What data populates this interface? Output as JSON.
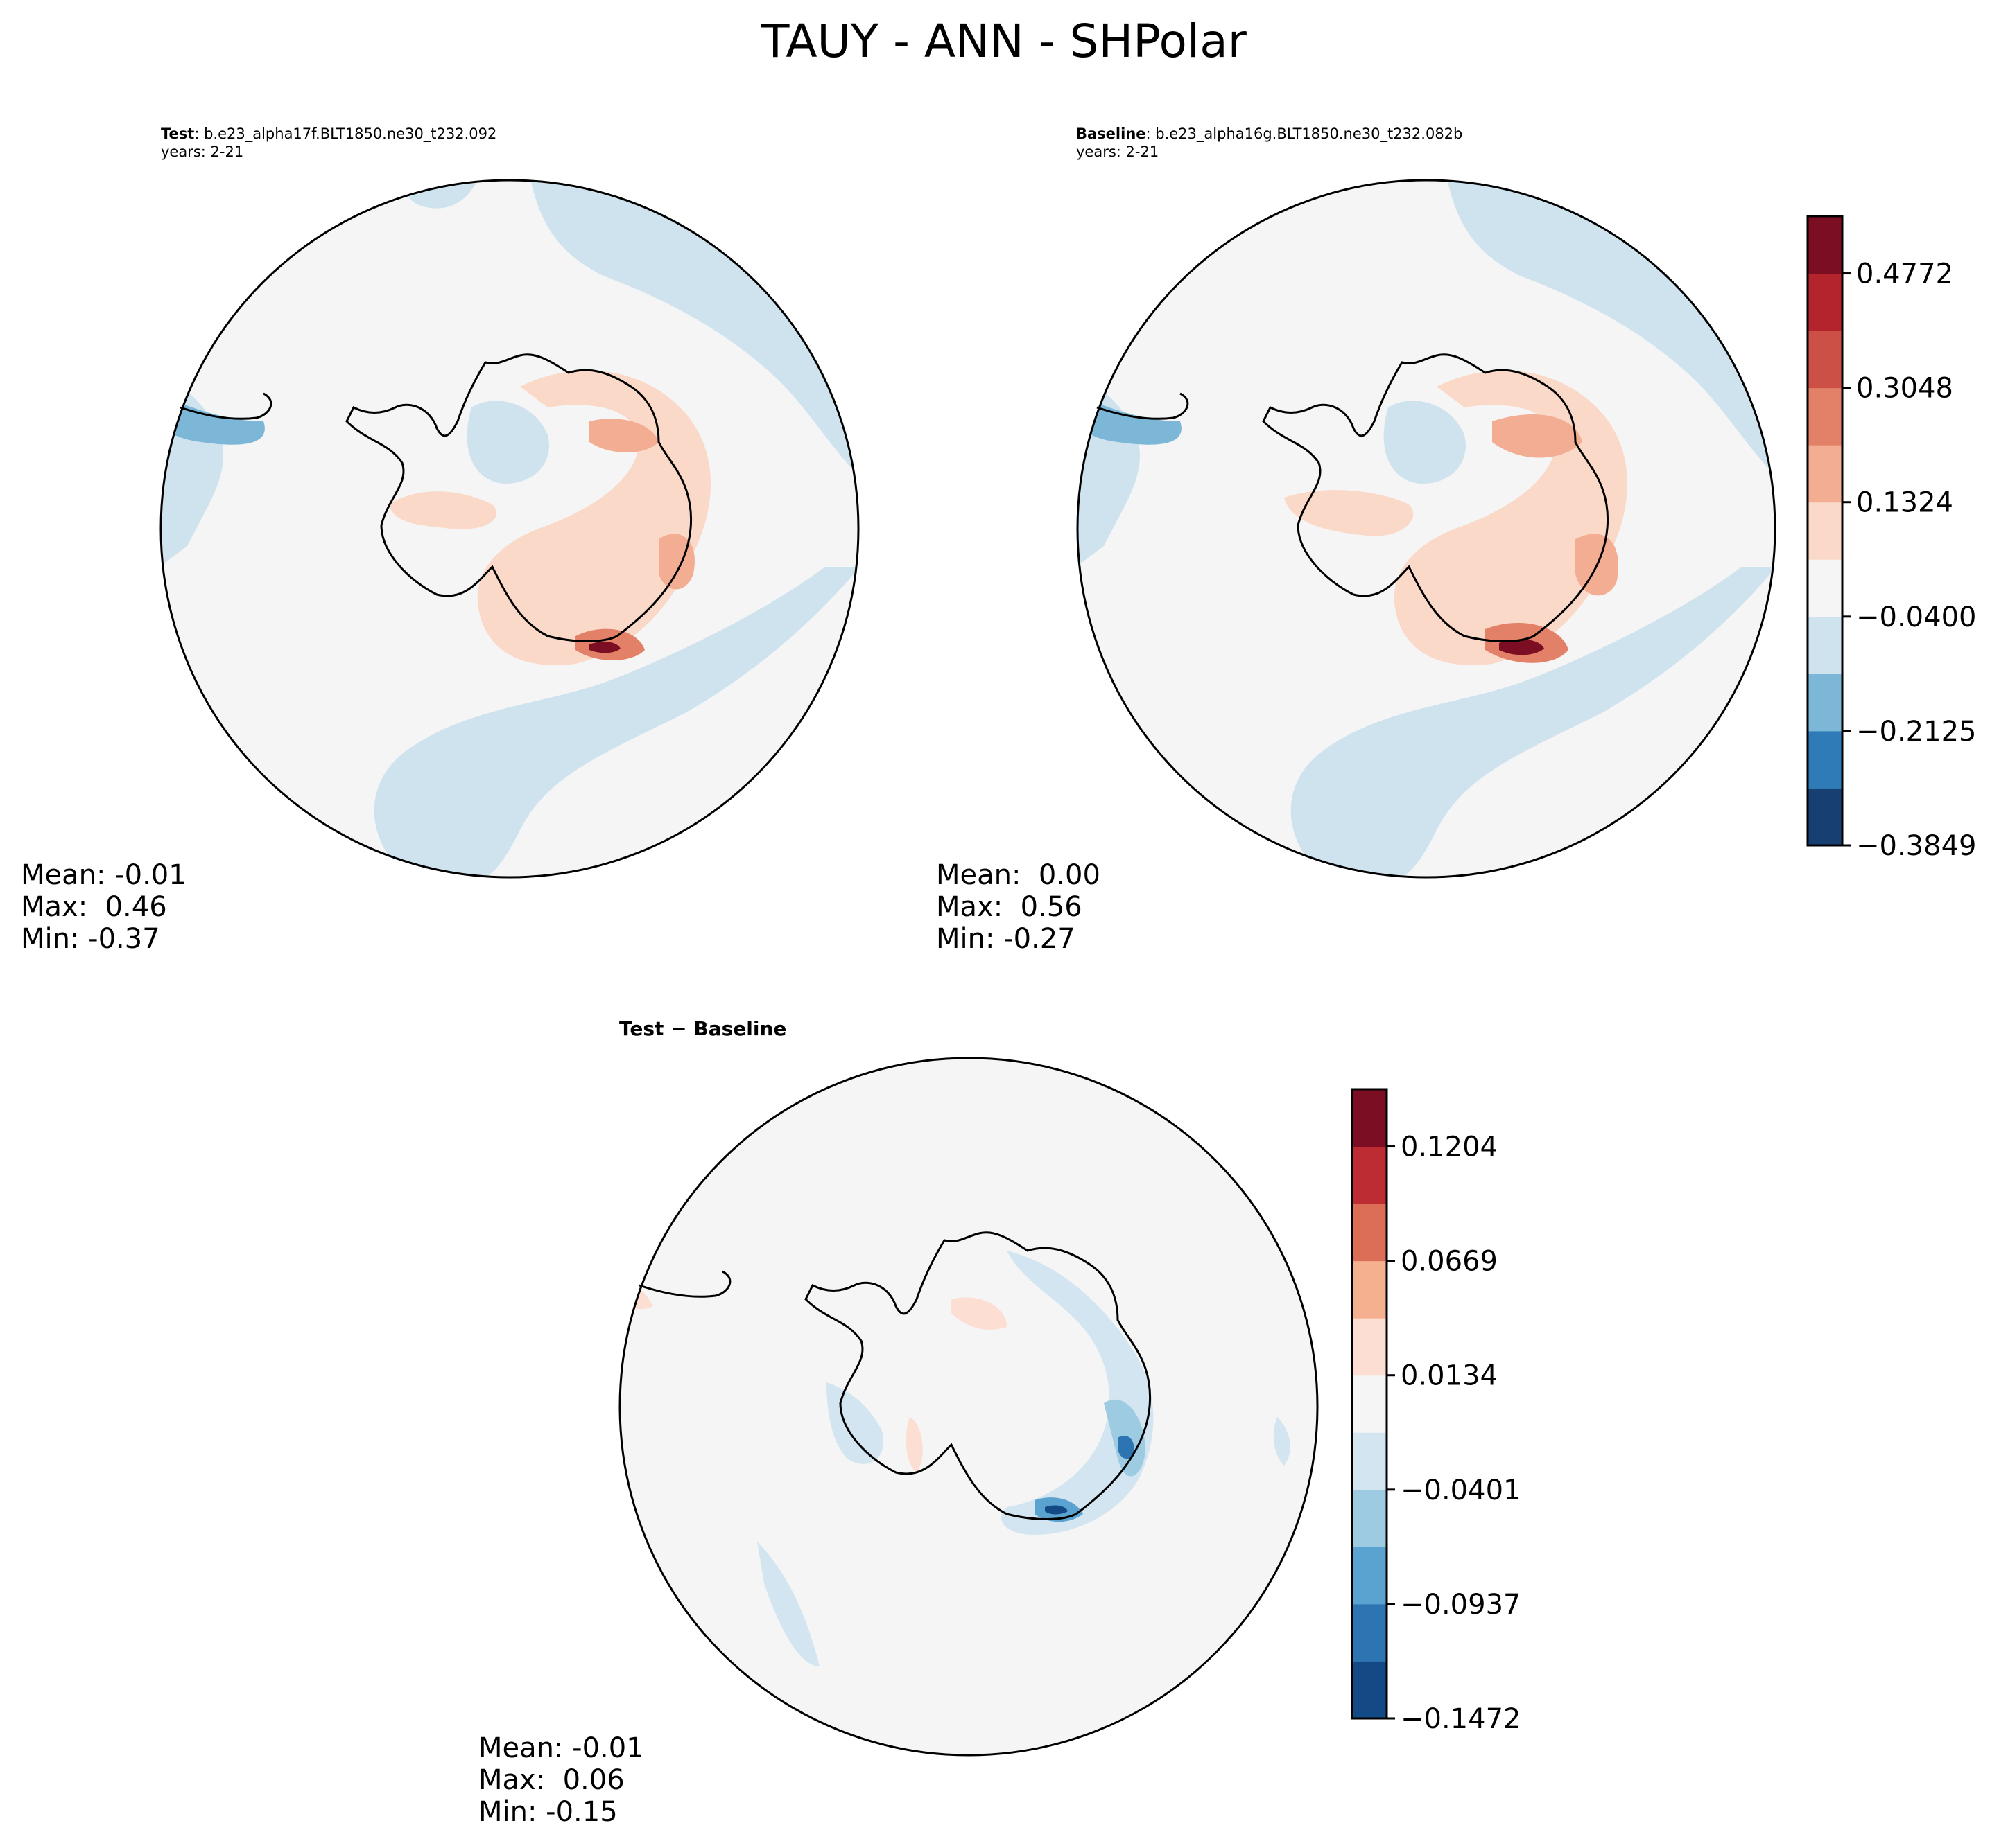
{
  "figure": {
    "title": "TAUY - ANN - SHPolar"
  },
  "panels": {
    "test": {
      "label": "Test",
      "case": ": b.e23_alpha17f.BLT1850.ne30_t232.092",
      "years": "years: 2-21",
      "stats": {
        "mean": "Mean: -0.01",
        "max": "Max:  0.46",
        "min": "Min: -0.37"
      }
    },
    "baseline": {
      "label": "Baseline",
      "case": ": b.e23_alpha16g.BLT1850.ne30_t232.082b",
      "years": "years: 2-21",
      "stats": {
        "mean": "Mean:  0.00",
        "max": "Max:  0.56",
        "min": "Min: -0.27"
      }
    },
    "diff": {
      "title": "Test − Baseline",
      "stats": {
        "mean": "Mean: -0.01",
        "max": "Max:  0.06",
        "min": "Min: -0.15"
      }
    }
  },
  "colorbars": {
    "main": {
      "ticks": [
        "0.4772",
        "0.3048",
        "0.1324",
        "−0.0400",
        "−0.2125",
        "−0.3849"
      ],
      "colors": [
        "#173f72",
        "#2f7bb7",
        "#7db7d8",
        "#cfe3ef",
        "#f5f5f5",
        "#fbd9c9",
        "#f2ad92",
        "#e28068",
        "#cd5046",
        "#b3242c",
        "#7b0e23"
      ]
    },
    "diff": {
      "ticks": [
        "0.1204",
        "0.0669",
        "0.0134",
        "−0.0401",
        "−0.0937",
        "−0.1472"
      ],
      "colors": [
        "#134a85",
        "#2d74b3",
        "#5aa2cf",
        "#9ccbe2",
        "#d2e5f0",
        "#f5f5f5",
        "#fcdfd2",
        "#f4b08f",
        "#dc6e58",
        "#bd2b33",
        "#7b0e23"
      ]
    }
  },
  "map_colors": {
    "background": "#f5f5f5",
    "light_blue": "#cfe3ef",
    "mid_blue": "#7db7d8",
    "dark_blue": "#2f7bb7",
    "light_red": "#fbd9c9",
    "mid_red": "#f2ad92",
    "red": "#e28068",
    "dark_red": "#b3242c",
    "darkest_red": "#7b0e23"
  }
}
